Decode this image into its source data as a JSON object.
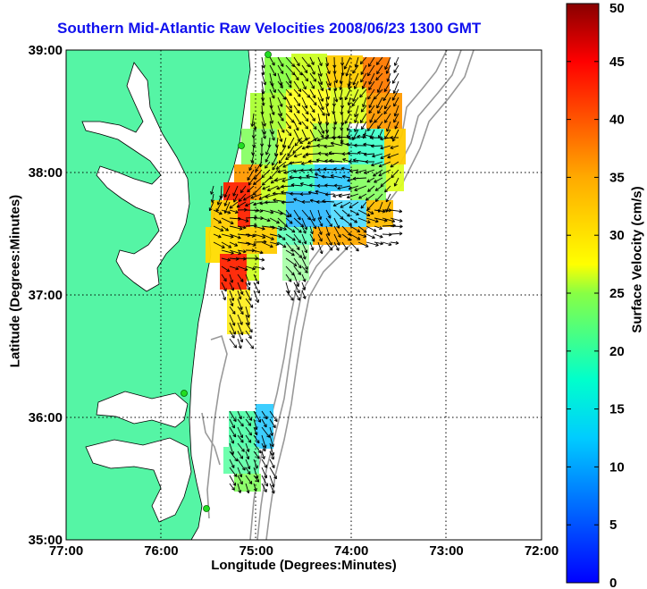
{
  "title": "Southern Mid-Atlantic Raw Velocities 2008/06/23 1300 GMT",
  "x_axis": {
    "label": "Longitude (Degrees:Minutes)",
    "ticks": [
      "77:00",
      "76:00",
      "75:00",
      "74:00",
      "73:00",
      "72:00"
    ]
  },
  "y_axis": {
    "label": "Latitude (Degrees:Minutes)",
    "ticks": [
      "39:00",
      "38:00",
      "37:00",
      "36:00",
      "35:00"
    ]
  },
  "colorbar": {
    "label": "Surface Velocity (cm/s)",
    "ticks": [
      "50",
      "45",
      "40",
      "35",
      "30",
      "25",
      "20",
      "15",
      "10",
      "5",
      "0"
    ],
    "range": [
      0,
      50
    ],
    "colormap": "jet"
  },
  "map": {
    "lon_range": [
      -77,
      -72
    ],
    "lat_range": [
      35,
      39
    ],
    "land_color": "#55f5a5",
    "water_color": "#ffffff",
    "bathymetry_color": "#999999",
    "station_color": "#22dd22",
    "arrow_color": "#000000",
    "grid": "dotted"
  }
}
